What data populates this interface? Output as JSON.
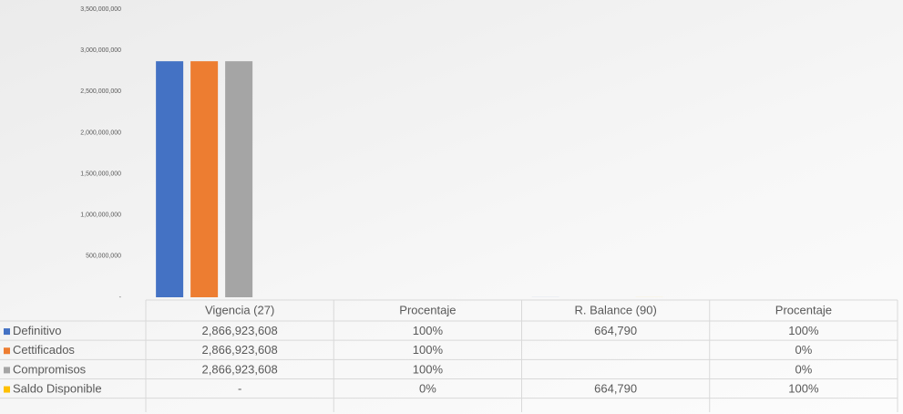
{
  "chart_data": {
    "type": "bar",
    "categories": [
      "Vigencia (27)",
      "Procentaje",
      "R. Balance (90)",
      "Procentaje"
    ],
    "series": [
      {
        "name": "Definitivo",
        "color": "#4472c4",
        "values": [
          2866923608,
          1,
          664790,
          1
        ],
        "value_labels": [
          "2,866,923,608",
          "100%",
          "664,790",
          "100%"
        ]
      },
      {
        "name": "Cettificados",
        "color": "#ed7d31",
        "values": [
          2866923608,
          1,
          null,
          0
        ],
        "value_labels": [
          "2,866,923,608",
          "100%",
          null,
          "0%"
        ]
      },
      {
        "name": "Compromisos",
        "color": "#a5a5a5",
        "values": [
          2866923608,
          1,
          null,
          0
        ],
        "value_labels": [
          "2,866,923,608",
          "100%",
          null,
          "0%"
        ]
      },
      {
        "name": "Saldo Disponible",
        "color": "#ffc000",
        "values": [
          0,
          0,
          664790,
          1
        ],
        "value_labels": [
          "-",
          "0%",
          "664,790",
          "100%"
        ]
      }
    ],
    "ylim": [
      0,
      3500000000
    ],
    "yticks": [
      {
        "value": 0,
        "label": "-"
      },
      {
        "value": 500000000,
        "label": "500,000,000"
      },
      {
        "value": 1000000000,
        "label": "1,000,000,000"
      },
      {
        "value": 1500000000,
        "label": "1,500,000,000"
      },
      {
        "value": 2000000000,
        "label": "2,000,000,000"
      },
      {
        "value": 2500000000,
        "label": "2,500,000,000"
      },
      {
        "value": 3000000000,
        "label": "3,000,000,000"
      },
      {
        "value": 3500000000,
        "label": "3,500,000,000"
      }
    ],
    "grid": false,
    "legend": "table"
  }
}
